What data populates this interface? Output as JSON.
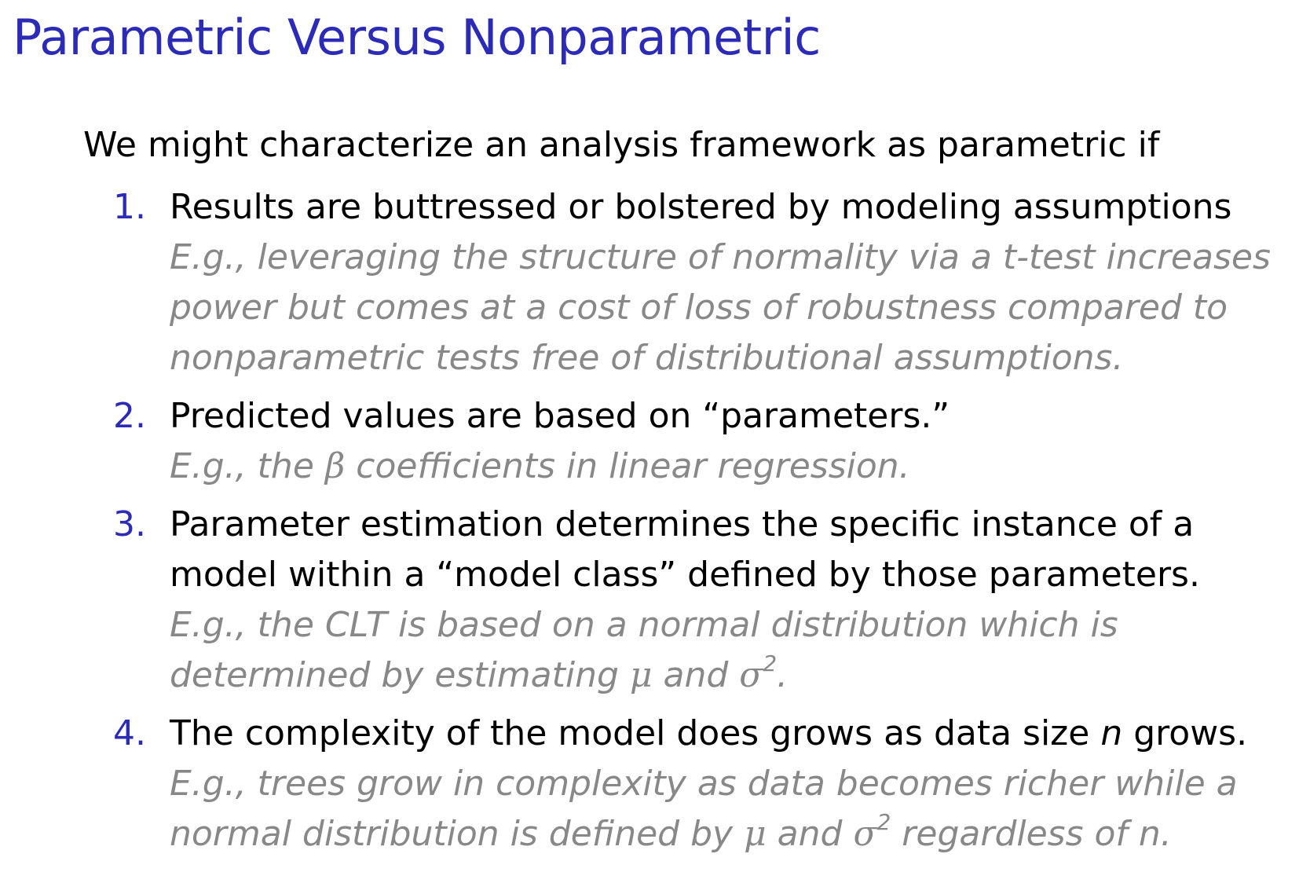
{
  "slide": {
    "title": "Parametric Versus Nonparametric",
    "intro": "We might characterize an analysis framework as parametric if",
    "items": [
      {
        "number": "1.",
        "statement": "Results are buttressed or bolstered by modeling assumptions",
        "example": "E.g., leveraging the structure of normality via a t-test increases power but comes at a cost of loss of robustness compared to nonparametric tests free of distributional assumptions."
      },
      {
        "number": "2.",
        "statement": "Predicted values are based on “parameters.”",
        "example_pre": "E.g., the ",
        "example_beta": "β",
        "example_post": " coefficients in linear regression."
      },
      {
        "number": "3.",
        "statement": "Parameter estimation determines the specific instance of a model within a “model class” defined by those parameters.",
        "example_pre": "E.g., the CLT is based on a normal distribution which is determined by estimating ",
        "example_mu": "μ",
        "example_and": " and ",
        "example_sigma": "σ",
        "example_sup": "2",
        "example_post": "."
      },
      {
        "number": "4.",
        "statement_pre": "The complexity of the model does grows as data size ",
        "statement_n": "n",
        "statement_post": " grows.",
        "example_pre": "E.g., trees grow in complexity as data becomes richer while a normal distribution is defined by ",
        "example_mu": "μ",
        "example_and": " and ",
        "example_sigma": "σ",
        "example_sup": "2",
        "example_mid": " regardless of ",
        "example_n": "n",
        "example_post": "."
      }
    ]
  },
  "colors": {
    "title": "#2b2bb8",
    "number": "#2b2bb8",
    "statement": "#000000",
    "example": "#888888",
    "background": "#ffffff"
  }
}
